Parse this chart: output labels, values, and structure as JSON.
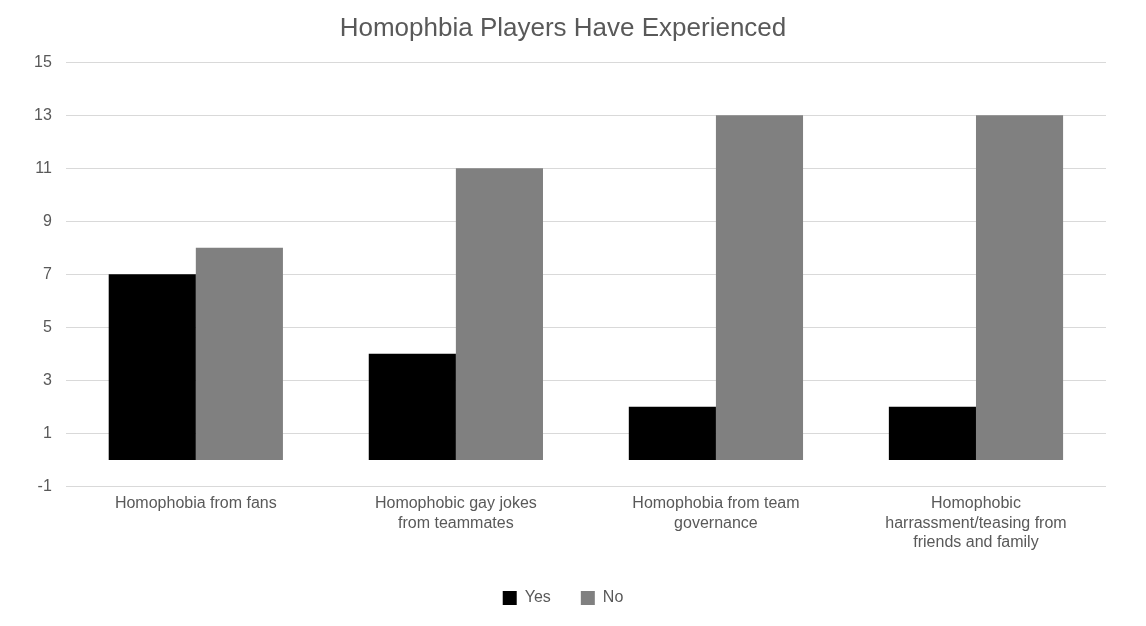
{
  "chart_data": {
    "type": "bar",
    "title": "Homophbia Players Have Experienced",
    "categories": [
      "Homophobia from fans",
      "Homophobic gay jokes from teammates",
      "Homophobia from team governance",
      "Homophobic harrassment/teasing from friends and family"
    ],
    "series": [
      {
        "name": "Yes",
        "color": "#000000",
        "values": [
          7,
          4,
          2,
          2
        ]
      },
      {
        "name": "No",
        "color": "#808080",
        "values": [
          8,
          11,
          13,
          13
        ]
      }
    ],
    "ylim": [
      -1,
      15
    ],
    "yticks": [
      -1,
      1,
      3,
      5,
      7,
      9,
      11,
      13,
      15
    ],
    "grid": "y",
    "legend": "bottom"
  }
}
